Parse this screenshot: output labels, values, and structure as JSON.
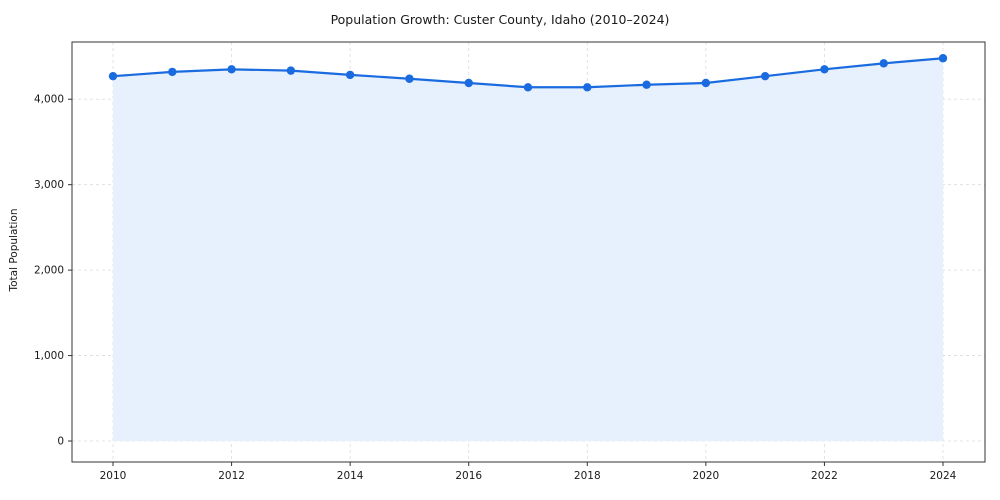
{
  "title": "Population Growth: Custer County, Idaho (2010–2024)",
  "chart_data": {
    "type": "line",
    "title": "Population Growth: Custer County, Idaho (2010–2024)",
    "xlabel": "",
    "ylabel": "Total Population",
    "x": [
      2010,
      2011,
      2012,
      2013,
      2014,
      2015,
      2016,
      2017,
      2018,
      2019,
      2020,
      2021,
      2022,
      2023,
      2024
    ],
    "series": [
      {
        "name": "Total Population",
        "values": [
          4270,
          4320,
          4350,
          4335,
          4285,
          4240,
          4190,
          4140,
          4140,
          4170,
          4190,
          4270,
          4350,
          4420,
          4480
        ]
      }
    ],
    "xticks": [
      "2010",
      "2012",
      "2014",
      "2016",
      "2018",
      "2020",
      "2022",
      "2024"
    ],
    "xtick_values": [
      2010,
      2012,
      2014,
      2016,
      2018,
      2020,
      2022,
      2024
    ],
    "yticks": [
      "0",
      "1,000",
      "2,000",
      "3,000",
      "4,000"
    ],
    "ytick_values": [
      0,
      1000,
      2000,
      3000,
      4000
    ],
    "xlim": [
      2010,
      2024
    ],
    "ylim": [
      0,
      4670
    ],
    "grid": "dashed",
    "legend_position": "none",
    "marker": "circle",
    "area_fill": true,
    "colors": {
      "line": "#1a6be0",
      "marker": "#1a6be0",
      "area_fill": "#e7f0fd",
      "grid": "#dcdcdc",
      "axis": "#333333",
      "text": "#1a1a1a",
      "background": "#ffffff"
    }
  }
}
